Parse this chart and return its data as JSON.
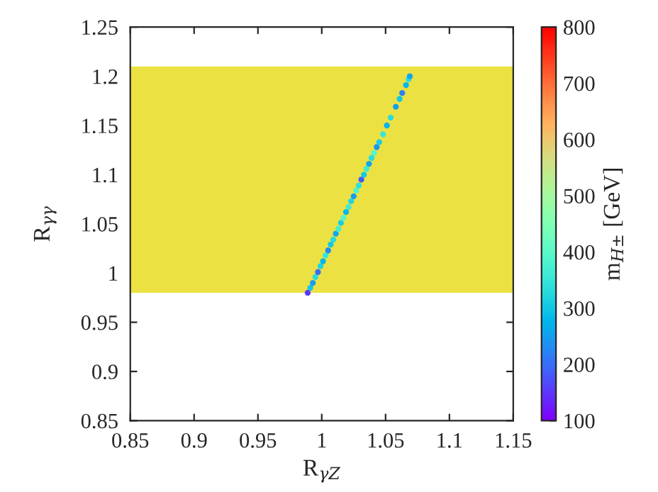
{
  "chart_data": {
    "type": "scatter",
    "xlabel": "R$_{γZ}$",
    "ylabel": "R$_{γγ}$",
    "clabel": "m$_{H±}$ [GeV]",
    "x": [
      0.989,
      0.991,
      0.993,
      0.995,
      0.997,
      0.999,
      1.001,
      1.003,
      1.005,
      1.007,
      1.009,
      1.011,
      1.013,
      1.015,
      1.017,
      1.019,
      1.021,
      1.023,
      1.025,
      1.027,
      1.029,
      1.031,
      1.033,
      1.035,
      1.037,
      1.039,
      1.041,
      1.043,
      1.045,
      1.048,
      1.051,
      1.054,
      1.058,
      1.061,
      1.063,
      1.066,
      1.068,
      1.069
    ],
    "values": [
      0.98,
      0.985,
      0.99,
      0.996,
      1.001,
      1.007,
      1.012,
      1.018,
      1.023,
      1.029,
      1.034,
      1.04,
      1.045,
      1.051,
      1.056,
      1.062,
      1.067,
      1.073,
      1.078,
      1.084,
      1.089,
      1.095,
      1.1,
      1.106,
      1.111,
      1.117,
      1.122,
      1.128,
      1.133,
      1.141,
      1.15,
      1.158,
      1.169,
      1.177,
      1.183,
      1.191,
      1.197,
      1.2
    ],
    "cvalues": [
      150,
      300,
      250,
      330,
      200,
      320,
      280,
      350,
      230,
      300,
      330,
      260,
      370,
      310,
      390,
      280,
      360,
      320,
      250,
      380,
      340,
      180,
      300,
      360,
      260,
      330,
      390,
      240,
      310,
      350,
      270,
      330,
      250,
      300,
      220,
      280,
      330,
      260
    ],
    "marker": "circle",
    "xlim": [
      0.85,
      1.15
    ],
    "xticks": [
      0.85,
      0.9,
      0.95,
      1,
      1.05,
      1.1,
      1.15
    ],
    "ylim": [
      0.85,
      1.25
    ],
    "yticks": [
      0.85,
      0.9,
      0.95,
      1,
      1.05,
      1.1,
      1.15,
      1.2,
      1.25
    ],
    "clim": [
      100,
      800
    ],
    "cticks": [
      100,
      200,
      300,
      400,
      500,
      600,
      700,
      800
    ],
    "bands": [
      {
        "axis": "y",
        "from": 0.98,
        "to": 1.21,
        "color": "#ece142"
      }
    ],
    "grid": false,
    "legend": false
  }
}
